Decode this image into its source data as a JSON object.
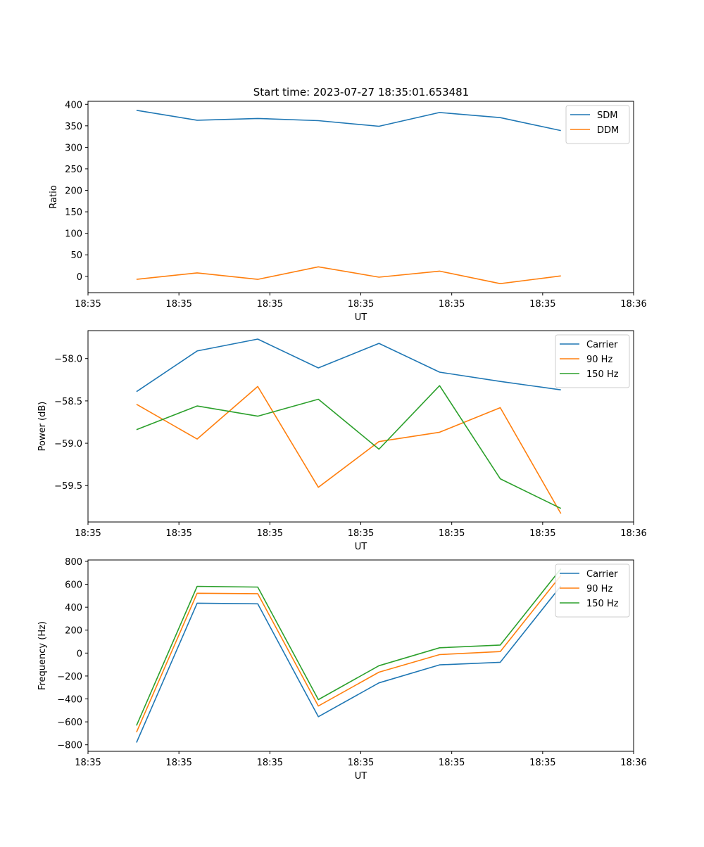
{
  "title": "Start time: 2023-07-27 18:35:01.653481",
  "chart_data": [
    {
      "type": "line",
      "xlabel": "UT",
      "ylabel": "Ratio",
      "x": [
        1,
        2,
        3,
        4,
        5,
        6,
        7,
        8
      ],
      "xlim": [
        0.2,
        9.2
      ],
      "xticks": [
        {
          "value": 0.2,
          "label": "18:35"
        },
        {
          "value": 1.7,
          "label": "18:35"
        },
        {
          "value": 3.2,
          "label": "18:35"
        },
        {
          "value": 4.7,
          "label": "18:35"
        },
        {
          "value": 6.2,
          "label": "18:35"
        },
        {
          "value": 7.7,
          "label": "18:35"
        },
        {
          "value": 9.2,
          "label": "18:36"
        }
      ],
      "ylim": [
        -38,
        407
      ],
      "yticks": [
        {
          "value": 400,
          "label": "400"
        },
        {
          "value": 350,
          "label": "350"
        },
        {
          "value": 300,
          "label": "300"
        },
        {
          "value": 250,
          "label": "250"
        },
        {
          "value": 200,
          "label": "200"
        },
        {
          "value": 150,
          "label": "150"
        },
        {
          "value": 100,
          "label": "100"
        },
        {
          "value": 50,
          "label": "50"
        },
        {
          "value": 0,
          "label": "0"
        }
      ],
      "legend": "top-right",
      "series": [
        {
          "name": "SDM",
          "color": "#1f77b4",
          "values": [
            386,
            363,
            367,
            362,
            349,
            381,
            369,
            339
          ]
        },
        {
          "name": "DDM",
          "color": "#ff7f0e",
          "values": [
            -7,
            8,
            -7,
            22,
            -2,
            12,
            -17,
            1
          ]
        }
      ]
    },
    {
      "type": "line",
      "xlabel": "UT",
      "ylabel": "Power (dB)",
      "x": [
        1,
        2,
        3,
        4,
        5,
        6,
        7,
        8
      ],
      "xlim": [
        0.2,
        9.2
      ],
      "xticks": [
        {
          "value": 0.2,
          "label": "18:35"
        },
        {
          "value": 1.7,
          "label": "18:35"
        },
        {
          "value": 3.2,
          "label": "18:35"
        },
        {
          "value": 4.7,
          "label": "18:35"
        },
        {
          "value": 6.2,
          "label": "18:35"
        },
        {
          "value": 7.7,
          "label": "18:35"
        },
        {
          "value": 9.2,
          "label": "18:36"
        }
      ],
      "ylim": [
        -59.93,
        -57.67
      ],
      "yticks": [
        {
          "value": -58.0,
          "label": "−58.0"
        },
        {
          "value": -58.5,
          "label": "−58.5"
        },
        {
          "value": -59.0,
          "label": "−59.0"
        },
        {
          "value": -59.5,
          "label": "−59.5"
        }
      ],
      "legend": "top-right",
      "series": [
        {
          "name": "Carrier",
          "color": "#1f77b4",
          "values": [
            -58.39,
            -57.91,
            -57.77,
            -58.11,
            -57.82,
            -58.16,
            -58.27,
            -58.37
          ]
        },
        {
          "name": "90 Hz",
          "color": "#ff7f0e",
          "values": [
            -58.54,
            -58.95,
            -58.33,
            -59.52,
            -58.98,
            -58.87,
            -58.58,
            -59.83
          ]
        },
        {
          "name": "150 Hz",
          "color": "#2ca02c",
          "values": [
            -58.84,
            -58.56,
            -58.68,
            -58.48,
            -59.07,
            -58.32,
            -59.42,
            -59.77
          ]
        }
      ]
    },
    {
      "type": "line",
      "xlabel": "UT",
      "ylabel": "Frequency (Hz)",
      "x": [
        1,
        2,
        3,
        4,
        5,
        6,
        7,
        8
      ],
      "xlim": [
        0.2,
        9.2
      ],
      "xticks": [
        {
          "value": 0.2,
          "label": "18:35"
        },
        {
          "value": 1.7,
          "label": "18:35"
        },
        {
          "value": 3.2,
          "label": "18:35"
        },
        {
          "value": 4.7,
          "label": "18:35"
        },
        {
          "value": 6.2,
          "label": "18:35"
        },
        {
          "value": 7.7,
          "label": "18:35"
        },
        {
          "value": 9.2,
          "label": "18:36"
        }
      ],
      "ylim": [
        -857,
        812
      ],
      "yticks": [
        {
          "value": 800,
          "label": "800"
        },
        {
          "value": 600,
          "label": "600"
        },
        {
          "value": 400,
          "label": "400"
        },
        {
          "value": 200,
          "label": "200"
        },
        {
          "value": 0,
          "label": "0"
        },
        {
          "value": -200,
          "label": "−200"
        },
        {
          "value": -400,
          "label": "−400"
        },
        {
          "value": -600,
          "label": "−600"
        },
        {
          "value": -800,
          "label": "−800"
        }
      ],
      "legend": "top-right",
      "series": [
        {
          "name": "Carrier",
          "color": "#1f77b4",
          "values": [
            -780,
            435,
            430,
            -555,
            -260,
            -103,
            -80,
            585
          ]
        },
        {
          "name": "90 Hz",
          "color": "#ff7f0e",
          "values": [
            -690,
            522,
            518,
            -462,
            -167,
            -13,
            13,
            677
          ]
        },
        {
          "name": "150 Hz",
          "color": "#2ca02c",
          "values": [
            -632,
            582,
            576,
            -406,
            -110,
            46,
            70,
            735
          ]
        }
      ]
    }
  ]
}
